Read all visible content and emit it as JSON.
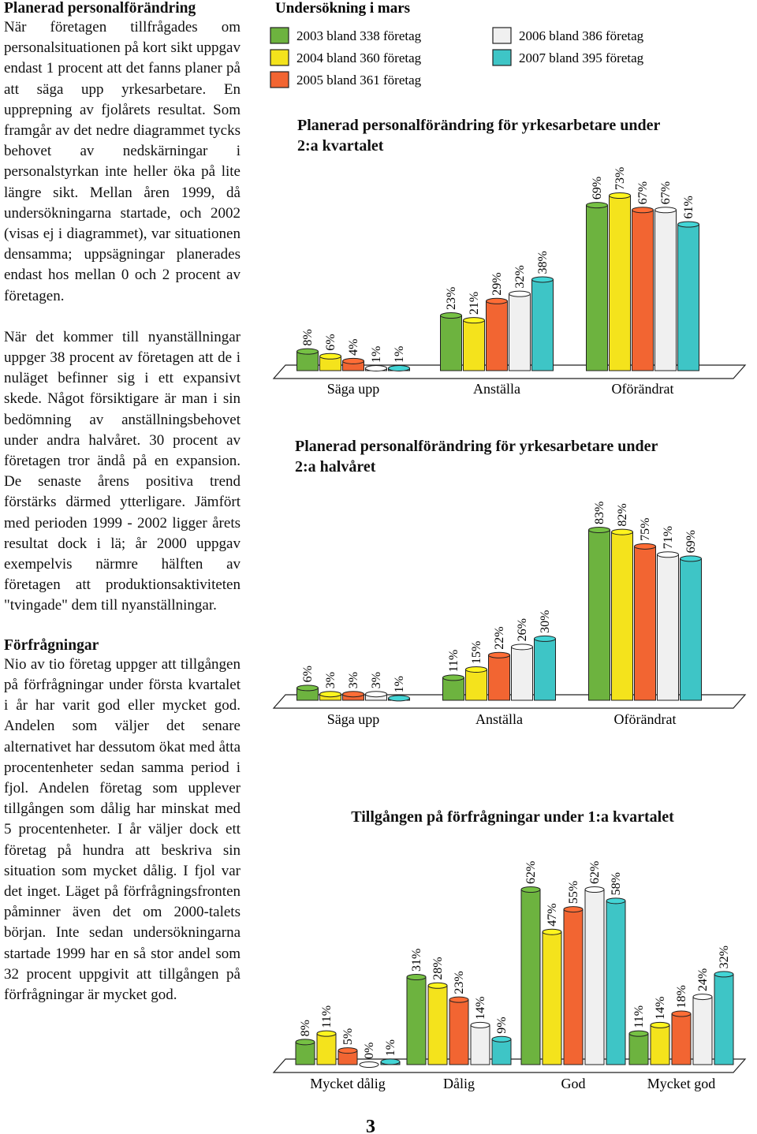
{
  "left_column": {
    "sections": [
      {
        "heading": "Planerad personalförändring",
        "paragraphs": [
          "När företagen tillfrågades om personalsituationen på kort sikt uppgav endast 1 procent att det fanns planer på att säga upp yrkesarbetare. En upprepning av fjolårets resultat. Som framgår av det nedre diagrammet tycks behovet av nedskärningar i personalstyrkan inte heller öka på lite längre sikt. Mellan åren 1999, då undersökningarna startade, och 2002 (visas ej i diagrammet), var situationen densamma; uppsägningar planerades endast hos mellan 0 och 2 procent av företagen.",
          "När det kommer till nyanställningar uppger 38 procent av företagen att de i nuläget befinner sig i ett expansivt skede. Något försiktigare är man i sin bedömning av anställningsbehovet under andra halvåret. 30 procent av företagen tror ändå på en expansion. De senaste årens positiva trend förstärks därmed ytterligare. Jämfört med perioden 1999 - 2002 ligger årets resultat dock i lä; år 2000 uppgav exempelvis närmre hälften av företagen att produktionsaktiviteten \"tvingade\" dem till nyanställningar."
        ]
      },
      {
        "heading": "Förfrågningar",
        "paragraphs": [
          "Nio av tio företag uppger att tillgången på förfrågningar under första kvartalet i år har varit god eller mycket god. Andelen som väljer det senare alternativet har dessutom ökat med åtta procentenheter sedan samma period i fjol. Andelen företag som upplever tillgången som dålig har minskat med 5 procentenheter. I år väljer dock ett företag på hundra att beskriva sin situation som mycket dålig. I fjol var det inget. Läget på förfrågningsfronten påminner även det om 2000-talets början. Inte sedan undersökningarna startade 1999 har en så stor andel som 32 procent uppgivit att tillgången på förfrågningar är mycket god."
        ]
      }
    ]
  },
  "legend": {
    "title": "Undersökning i mars",
    "entries": [
      {
        "name": "2003 bland 338 företag",
        "color": "#6db33f"
      },
      {
        "name": "2004 bland 360 företag",
        "color": "#f4e31c"
      },
      {
        "name": "2005 bland 361 företag",
        "color": "#f26532"
      },
      {
        "name": "2006 bland 386 företag",
        "color": "#f0f0f0"
      },
      {
        "name": "2007 bland 395 företag",
        "color": "#3ec5c6"
      }
    ]
  },
  "chart_data": [
    {
      "type": "bar",
      "title": "Planerad personalförändring  för yrkesarbetare under 2:a kvartalet",
      "categories": [
        "Säga upp",
        "Anställa",
        "Oförändrat"
      ],
      "series": [
        {
          "values": [
            8,
            23,
            69
          ],
          "value_labels": [
            "8%",
            "23%",
            "69%"
          ]
        },
        {
          "values": [
            6,
            21,
            73
          ],
          "value_labels": [
            "6%",
            "21%",
            "73%"
          ]
        },
        {
          "values": [
            4,
            29,
            67
          ],
          "value_labels": [
            "4%",
            "29%",
            "67%"
          ]
        },
        {
          "values": [
            1,
            32,
            67
          ],
          "value_labels": [
            "1%",
            "32%",
            "67%"
          ]
        },
        {
          "values": [
            1,
            38,
            61
          ],
          "value_labels": [
            "1%",
            "38%",
            "61%"
          ]
        }
      ]
    },
    {
      "type": "bar",
      "title": "Planerad personalförändring  för yrkesarbetare under 2:a halvåret",
      "categories": [
        "Säga upp",
        "Anställa",
        "Oförändrat"
      ],
      "series": [
        {
          "values": [
            6,
            11,
            83
          ],
          "value_labels": [
            "6%",
            "11%",
            "83%"
          ]
        },
        {
          "values": [
            3,
            15,
            82
          ],
          "value_labels": [
            "3%",
            "15%",
            "82%"
          ]
        },
        {
          "values": [
            3,
            22,
            75
          ],
          "value_labels": [
            "3%",
            "22%",
            "75%"
          ]
        },
        {
          "values": [
            3,
            26,
            71
          ],
          "value_labels": [
            "3%",
            "26%",
            "71%"
          ]
        },
        {
          "values": [
            1,
            30,
            69
          ],
          "value_labels": [
            "1%",
            "30%",
            "69%"
          ]
        }
      ]
    },
    {
      "type": "bar",
      "title": "Tillgången på förfrågningar under 1:a kvartalet",
      "categories": [
        "Mycket dålig",
        "Dålig",
        "God",
        "Mycket god"
      ],
      "series": [
        {
          "values": [
            8,
            31,
            62,
            11
          ],
          "value_labels": [
            "8%",
            "31%",
            "62%",
            "11%"
          ]
        },
        {
          "values": [
            11,
            28,
            47,
            14
          ],
          "value_labels": [
            "11%",
            "28%",
            "47%",
            "14%"
          ]
        },
        {
          "values": [
            5,
            23,
            55,
            18
          ],
          "value_labels": [
            "5%",
            "23%",
            "55%",
            "18%"
          ]
        },
        {
          "values": [
            0,
            14,
            62,
            24
          ],
          "value_labels": [
            "0%",
            "14%",
            "62%",
            "24%"
          ]
        },
        {
          "values": [
            1,
            9,
            58,
            32
          ],
          "value_labels": [
            "1%",
            "9%",
            "58%",
            "32%"
          ]
        }
      ]
    }
  ],
  "page_number": "3"
}
